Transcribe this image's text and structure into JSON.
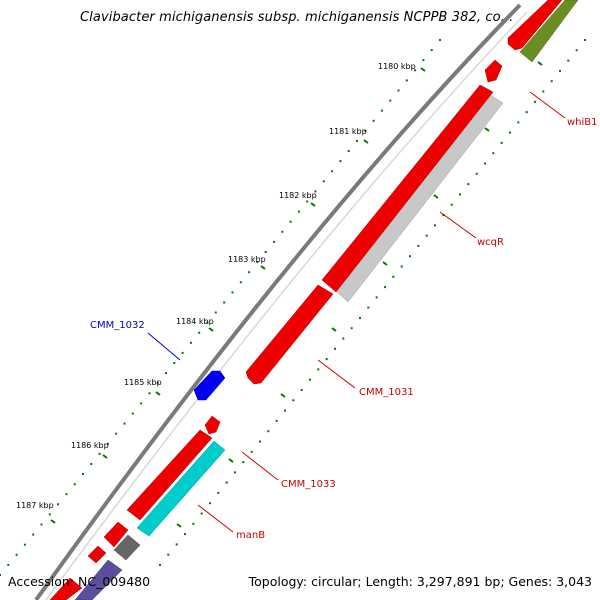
{
  "header": {
    "title": "Clavibacter michiganensis subsp. michiganensis NCPPB 382, co..."
  },
  "footer": {
    "accession": "Accession: NC_009480",
    "summary": "Topology: circular; Length: 3,297,891 bp; Genes: 3,043"
  },
  "scale": {
    "ticks": [
      "1180 kbp",
      "1181 kbp",
      "1182 kbp",
      "1183 kbp",
      "1184 kbp",
      "1185 kbp",
      "1186 kbp",
      "1187 kbp"
    ]
  },
  "genes": {
    "labels": [
      {
        "name": "whiB1",
        "color": "#cc0000"
      },
      {
        "name": "wcqR",
        "color": "#cc0000"
      },
      {
        "name": "CMM_1032",
        "color": "#0000cc"
      },
      {
        "name": "CMM_1031",
        "color": "#cc0000"
      },
      {
        "name": "CMM_1033",
        "color": "#cc0000"
      },
      {
        "name": "manB",
        "color": "#cc0000"
      }
    ]
  },
  "colors": {
    "cds": "#ff0000",
    "trna_like": "#0000ff",
    "gray_feature": "#c0c0c0",
    "teal_feature": "#00cccc",
    "olive_feature": "#6b8e23",
    "dark_gray_feature": "#666666",
    "purple_feature": "#5a4f9a",
    "backbone": "#808080",
    "tick": "#007700"
  }
}
